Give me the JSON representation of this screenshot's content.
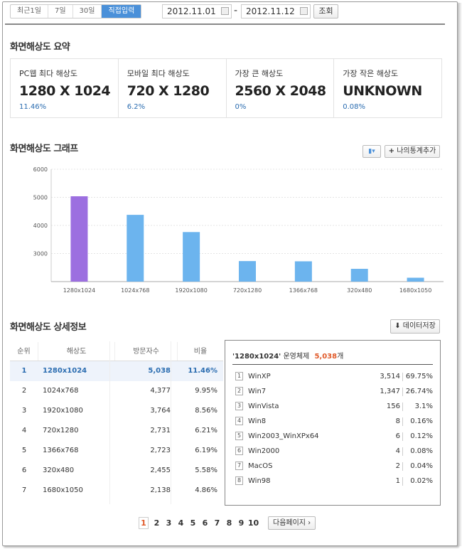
{
  "period_buttons": [
    "최근1일",
    "7일",
    "30일",
    "직접입력"
  ],
  "date_from": "2012.11.01",
  "date_to": "2012.11.12",
  "search_label": "조회",
  "summary_title": "화면해상도 요약",
  "summary": [
    {
      "label": "PC웹 최다 해상도",
      "value": "1280 X 1024",
      "pct": "11.46%"
    },
    {
      "label": "모바일 최다 해상도",
      "value": "720 X 1280",
      "pct": "6.2%"
    },
    {
      "label": "가장 큰 해상도",
      "value": "2560 X 2048",
      "pct": "0%"
    },
    {
      "label": "가장 작은 해상도",
      "value": "UNKNOWN",
      "pct": "0.08%"
    }
  ],
  "graph_title": "화면해상도 그래프",
  "add_stat_label": "나의통계추가",
  "chart_data": {
    "type": "bar",
    "categories": [
      "1280x1024",
      "1024x768",
      "1920x1080",
      "720x1280",
      "1366x768",
      "320x480",
      "1680x1050"
    ],
    "values": [
      5038,
      4377,
      3764,
      2731,
      2723,
      2455,
      2138
    ],
    "yticks": [
      3000,
      4000,
      5000,
      6000
    ],
    "ylim": [
      2000,
      6000
    ],
    "colors": {
      "highlight": "#9c6fe0",
      "normal": "#6cb4ee"
    },
    "xlabel": "",
    "ylabel": "",
    "grid": true
  },
  "detail_title": "화면해상도 상세정보",
  "save_label": "데이터저장",
  "table": {
    "headers": [
      "순위",
      "해상도",
      "방문자수",
      "비율"
    ],
    "rows": [
      [
        "1",
        "1280x1024",
        "5,038",
        "11.46%"
      ],
      [
        "2",
        "1024x768",
        "4,377",
        "9.95%"
      ],
      [
        "3",
        "1920x1080",
        "3,764",
        "8.56%"
      ],
      [
        "4",
        "720x1280",
        "2,731",
        "6.21%"
      ],
      [
        "5",
        "1366x768",
        "2,723",
        "6.19%"
      ],
      [
        "6",
        "320x480",
        "2,455",
        "5.58%"
      ],
      [
        "7",
        "1680x1050",
        "2,138",
        "4.86%"
      ]
    ]
  },
  "os_panel": {
    "resolution": "'1280x1024'",
    "label": "운영체제",
    "count": "5,038",
    "unit": "개",
    "rows": [
      [
        "1",
        "WinXP",
        "3,514",
        "69.75%"
      ],
      [
        "2",
        "Win7",
        "1,347",
        "26.74%"
      ],
      [
        "3",
        "WinVista",
        "156",
        "3.1%"
      ],
      [
        "4",
        "Win8",
        "8",
        "0.16%"
      ],
      [
        "5",
        "Win2003_WinXPx64",
        "6",
        "0.12%"
      ],
      [
        "6",
        "Win2000",
        "4",
        "0.08%"
      ],
      [
        "7",
        "MacOS",
        "2",
        "0.04%"
      ],
      [
        "8",
        "Win98",
        "1",
        "0.02%"
      ]
    ]
  },
  "pages": [
    "1",
    "2",
    "3",
    "4",
    "5",
    "6",
    "7",
    "8",
    "9",
    "10"
  ],
  "next_page_label": "다음페이지"
}
